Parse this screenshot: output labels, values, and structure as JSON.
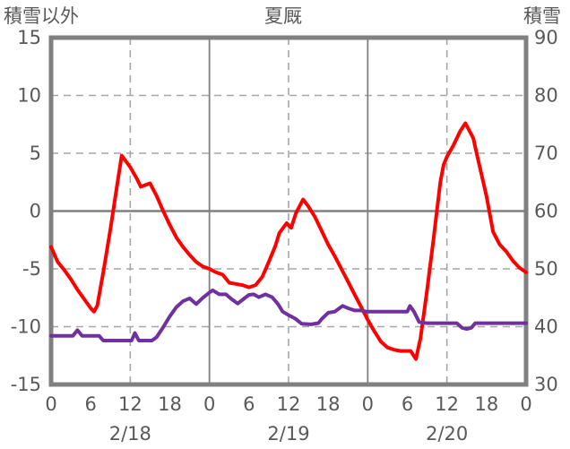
{
  "titles": {
    "left": "積雪以外",
    "center": "夏厩",
    "right": "積雪"
  },
  "colors": {
    "red_line": "#ff0000",
    "purple_line": "#7030a0",
    "grid_dashed": "#a6a6a6",
    "grid_solid": "#808080",
    "zero_line": "#808080",
    "frame": "#808080",
    "text": "#595959",
    "background": "#ffffff"
  },
  "chart_data": {
    "type": "line",
    "title": "夏厩",
    "legend": "none",
    "left_axis": {
      "title": "積雪以外",
      "min": -15,
      "max": 15,
      "tick_values": [
        15,
        10,
        5,
        0,
        -5,
        -10,
        -15
      ],
      "tick_labels": [
        "15",
        "10",
        "5",
        "0",
        "-5",
        "-10",
        "-15"
      ]
    },
    "right_axis": {
      "title": "積雪",
      "min": 30,
      "max": 90,
      "tick_values": [
        90,
        80,
        70,
        60,
        50,
        40,
        30
      ],
      "tick_labels": [
        "90",
        "80",
        "70",
        "60",
        "50",
        "40",
        "30"
      ]
    },
    "x_axis": {
      "unit": "hour",
      "range_hours": [
        0,
        72
      ],
      "tick_hours": [
        0,
        6,
        12,
        18,
        24,
        30,
        36,
        42,
        48,
        54,
        60,
        66,
        72
      ],
      "tick_labels": [
        "0",
        "6",
        "12",
        "18",
        "0",
        "6",
        "12",
        "18",
        "0",
        "6",
        "12",
        "18",
        "0"
      ],
      "date_labels": [
        {
          "label": "2/18",
          "hour": 12
        },
        {
          "label": "2/19",
          "hour": 36
        },
        {
          "label": "2/20",
          "hour": 60
        }
      ]
    },
    "grid": {
      "h_dashed_at_left_values": [
        10,
        5,
        -5,
        -10
      ],
      "h_solid_at_left_values": [
        0
      ],
      "v_dashed_at_hours": [
        12,
        36,
        60
      ],
      "v_solid_at_hours": [
        24,
        48
      ]
    },
    "series": [
      {
        "id": "red-line",
        "axis": "left",
        "color": "#ff0000",
        "stroke_width": 4,
        "points": [
          [
            0,
            -3.1
          ],
          [
            1,
            -4.4
          ],
          [
            2,
            -5.1
          ],
          [
            3,
            -5.9
          ],
          [
            4,
            -6.8
          ],
          [
            5,
            -7.6
          ],
          [
            6,
            -8.4
          ],
          [
            6.5,
            -8.7
          ],
          [
            7,
            -8.2
          ],
          [
            8,
            -5.0
          ],
          [
            9,
            -1.5
          ],
          [
            10,
            2.2
          ],
          [
            10.7,
            4.8
          ],
          [
            12,
            3.8
          ],
          [
            13,
            2.8
          ],
          [
            13.6,
            2.1
          ],
          [
            15,
            2.4
          ],
          [
            16,
            1.3
          ],
          [
            17,
            0.0
          ],
          [
            18,
            -1.2
          ],
          [
            19,
            -2.3
          ],
          [
            20,
            -3.1
          ],
          [
            21,
            -3.8
          ],
          [
            22,
            -4.4
          ],
          [
            23,
            -4.8
          ],
          [
            24,
            -5.0
          ],
          [
            25,
            -5.3
          ],
          [
            26,
            -5.5
          ],
          [
            27,
            -6.2
          ],
          [
            28,
            -6.3
          ],
          [
            29,
            -6.4
          ],
          [
            30,
            -6.6
          ],
          [
            31,
            -6.4
          ],
          [
            32,
            -5.7
          ],
          [
            33,
            -4.4
          ],
          [
            34,
            -3.0
          ],
          [
            34.6,
            -1.9
          ],
          [
            35.7,
            -1.05
          ],
          [
            36.4,
            -1.45
          ],
          [
            37.1,
            -0.2
          ],
          [
            38.2,
            1.0
          ],
          [
            39,
            0.4
          ],
          [
            40,
            -0.5
          ],
          [
            41,
            -1.7
          ],
          [
            42,
            -2.9
          ],
          [
            43,
            -3.9
          ],
          [
            44,
            -5.0
          ],
          [
            45,
            -6.1
          ],
          [
            46,
            -7.2
          ],
          [
            47,
            -8.3
          ],
          [
            48,
            -9.4
          ],
          [
            49,
            -10.4
          ],
          [
            50,
            -11.3
          ],
          [
            51,
            -11.8
          ],
          [
            52,
            -12.0
          ],
          [
            53,
            -12.1
          ],
          [
            54.5,
            -12.1
          ],
          [
            55.3,
            -12.8
          ],
          [
            56,
            -11.0
          ],
          [
            57,
            -6.8
          ],
          [
            58,
            -2.3
          ],
          [
            59,
            2.5
          ],
          [
            59.5,
            4.0
          ],
          [
            60,
            4.7
          ],
          [
            61,
            5.7
          ],
          [
            62,
            6.9
          ],
          [
            62.8,
            7.6
          ],
          [
            64,
            6.3
          ],
          [
            64.5,
            5.0
          ],
          [
            66,
            1.3
          ],
          [
            67,
            -1.8
          ],
          [
            68,
            -2.9
          ],
          [
            69,
            -3.5
          ],
          [
            70,
            -4.3
          ],
          [
            71,
            -4.9
          ],
          [
            72,
            -5.3
          ]
        ]
      },
      {
        "id": "purple-line",
        "axis": "right",
        "color": "#7030a0",
        "stroke_width": 4,
        "points": [
          [
            0,
            38.4
          ],
          [
            3.3,
            38.4
          ],
          [
            4,
            39.4
          ],
          [
            4.7,
            38.4
          ],
          [
            7.3,
            38.4
          ],
          [
            7.9,
            37.6
          ],
          [
            12.2,
            37.6
          ],
          [
            12.7,
            38.9
          ],
          [
            13.3,
            37.6
          ],
          [
            15.3,
            37.6
          ],
          [
            16,
            38.2
          ],
          [
            17,
            39.9
          ],
          [
            18,
            41.8
          ],
          [
            19,
            43.4
          ],
          [
            20,
            44.4
          ],
          [
            21,
            44.9
          ],
          [
            22,
            43.9
          ],
          [
            23,
            45.0
          ],
          [
            24,
            45.9
          ],
          [
            24.5,
            46.3
          ],
          [
            25.5,
            45.6
          ],
          [
            26.5,
            45.6
          ],
          [
            27.3,
            44.8
          ],
          [
            28.3,
            44.0
          ],
          [
            29.2,
            44.8
          ],
          [
            30,
            45.5
          ],
          [
            30.7,
            45.6
          ],
          [
            31.5,
            45.1
          ],
          [
            32.5,
            45.6
          ],
          [
            33.5,
            45.1
          ],
          [
            34.4,
            43.9
          ],
          [
            35.1,
            42.6
          ],
          [
            36,
            42.0
          ],
          [
            37,
            41.4
          ],
          [
            38,
            40.5
          ],
          [
            39.4,
            40.4
          ],
          [
            40.5,
            40.6
          ],
          [
            41,
            41.3
          ],
          [
            42,
            42.4
          ],
          [
            43,
            42.6
          ],
          [
            44.2,
            43.6
          ],
          [
            45,
            43.2
          ],
          [
            46,
            42.8
          ],
          [
            47,
            42.8
          ],
          [
            47.8,
            42.6
          ],
          [
            49,
            42.6
          ],
          [
            54,
            42.6
          ],
          [
            54.4,
            43.6
          ],
          [
            55,
            42.6
          ],
          [
            55.8,
            40.8
          ],
          [
            57,
            40.6
          ],
          [
            61.5,
            40.6
          ],
          [
            62.3,
            39.8
          ],
          [
            63,
            39.6
          ],
          [
            63.7,
            39.8
          ],
          [
            64.3,
            40.6
          ],
          [
            72,
            40.6
          ]
        ]
      }
    ]
  }
}
